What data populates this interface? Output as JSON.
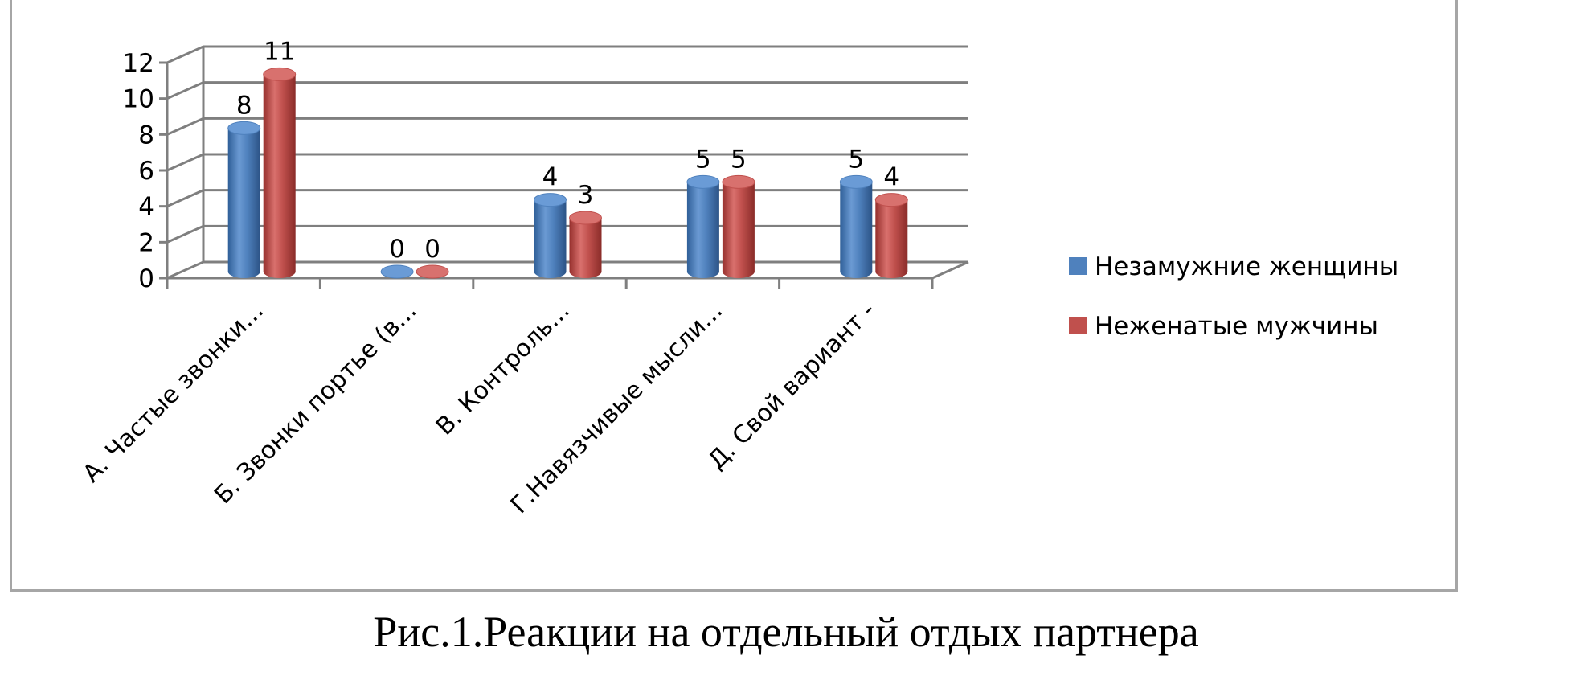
{
  "caption": "Рис.1.Реакции на отдельный отдых партнера",
  "chart_data": {
    "type": "bar",
    "style": "3d-cylinder",
    "categories": [
      "А. Частые звонки...",
      "Б. Звонки портье (в...",
      "В. Контроль...",
      "Г.Навязчивые мысли...",
      "Д. Свой вариант -"
    ],
    "series": [
      {
        "name": "Незамужние женщины",
        "values": [
          8,
          0,
          4,
          5,
          5
        ],
        "color": "#4f81bd"
      },
      {
        "name": "Неженатые мужчины",
        "values": [
          11,
          0,
          3,
          5,
          4
        ],
        "color": "#c0504d"
      }
    ],
    "ylim": [
      0,
      12
    ],
    "yticks": [
      "0",
      "2",
      "4",
      "6",
      "8",
      "10",
      "12"
    ],
    "grid": true,
    "legend": "right",
    "data_labels": true
  }
}
